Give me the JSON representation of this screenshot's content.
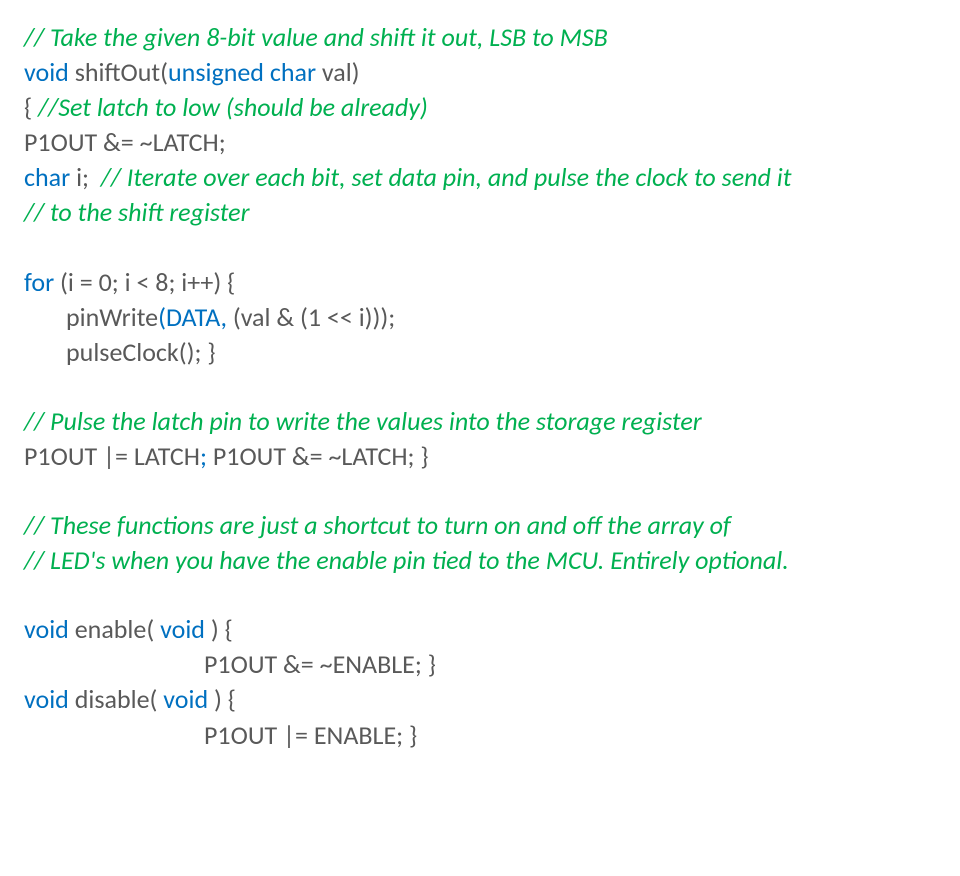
{
  "lines": [
    {
      "cls": "line italic",
      "spans": [
        {
          "c": "green",
          "t": "// Take the given 8-bit value and shift it out, LSB to MSB"
        }
      ]
    },
    {
      "cls": "line",
      "spans": [
        {
          "c": "blue",
          "t": "void "
        },
        {
          "c": "gray",
          "t": "shiftOut("
        },
        {
          "c": "blue",
          "t": "unsigned char "
        },
        {
          "c": "gray",
          "t": "val)"
        }
      ]
    },
    {
      "cls": "line",
      "spans": [
        {
          "c": "gray",
          "t": "{ "
        },
        {
          "c": "green italic",
          "t": "//Set latch to low (should be already)"
        }
      ]
    },
    {
      "cls": "line",
      "spans": [
        {
          "c": "gray",
          "t": "P1OUT &= ~LATCH;"
        }
      ]
    },
    {
      "cls": "line",
      "spans": [
        {
          "c": "blue",
          "t": "char "
        },
        {
          "c": "gray",
          "t": "i;  "
        },
        {
          "c": "green italic",
          "t": "// Iterate over each bit, set data pin, and pulse the clock to send it"
        }
      ]
    },
    {
      "cls": "line italic",
      "spans": [
        {
          "c": "green",
          "t": "// to the shift register"
        }
      ]
    },
    {
      "cls": "blank",
      "spans": []
    },
    {
      "cls": "line",
      "spans": [
        {
          "c": "blue",
          "t": "for "
        },
        {
          "c": "gray",
          "t": "(i = 0; i < 8; i++) {"
        }
      ]
    },
    {
      "cls": "line indent1",
      "spans": [
        {
          "c": "gray",
          "t": "pinWrite"
        },
        {
          "c": "blue",
          "t": "(DATA,"
        },
        {
          "c": "gray",
          "t": " (val & (1 << i)));"
        }
      ]
    },
    {
      "cls": "line indent1",
      "spans": [
        {
          "c": "gray",
          "t": "pulseClock(); }"
        }
      ]
    },
    {
      "cls": "blank",
      "spans": []
    },
    {
      "cls": "line italic",
      "spans": [
        {
          "c": "green",
          "t": "// Pulse the latch pin to write the values into the storage register"
        }
      ]
    },
    {
      "cls": "line",
      "spans": [
        {
          "c": "gray",
          "t": "P1OUT |= LATCH"
        },
        {
          "c": "blue",
          "t": ";"
        },
        {
          "c": "gray",
          "t": " P1OUT &= ~LATCH; }"
        }
      ]
    },
    {
      "cls": "blank",
      "spans": []
    },
    {
      "cls": "line italic",
      "spans": [
        {
          "c": "green",
          "t": "// These functions are just a shortcut to turn on and off the array of"
        }
      ]
    },
    {
      "cls": "line italic",
      "spans": [
        {
          "c": "green",
          "t": "// LED's when you have the enable pin tied to the MCU. Entirely optional."
        }
      ]
    },
    {
      "cls": "blank",
      "spans": []
    },
    {
      "cls": "line",
      "spans": [
        {
          "c": "blue",
          "t": "void "
        },
        {
          "c": "gray",
          "t": "enable( "
        },
        {
          "c": "blue",
          "t": "void "
        },
        {
          "c": "gray",
          "t": ") {"
        }
      ]
    },
    {
      "cls": "line indent2",
      "spans": [
        {
          "c": "gray",
          "t": "P1OUT &= ~ENABLE; }"
        }
      ]
    },
    {
      "cls": "line",
      "spans": [
        {
          "c": "blue",
          "t": "void "
        },
        {
          "c": "gray",
          "t": "disable( "
        },
        {
          "c": "blue",
          "t": "void "
        },
        {
          "c": "gray",
          "t": ") {"
        }
      ]
    },
    {
      "cls": "line indent2",
      "spans": [
        {
          "c": "gray",
          "t": "P1OUT |= ENABLE; }"
        }
      ]
    }
  ]
}
